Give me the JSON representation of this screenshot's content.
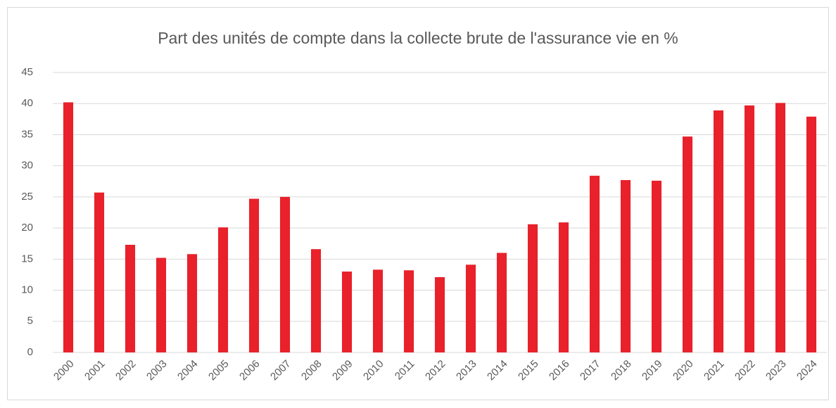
{
  "chart_data": {
    "type": "bar",
    "title": "Part des unités de compte dans la collecte brute de l'assurance vie en %",
    "categories": [
      "2000",
      "2001",
      "2002",
      "2003",
      "2004",
      "2005",
      "2006",
      "2007",
      "2008",
      "2009",
      "2010",
      "2011",
      "2012",
      "2013",
      "2014",
      "2015",
      "2016",
      "2017",
      "2018",
      "2019",
      "2020",
      "2021",
      "2022",
      "2023",
      "2024"
    ],
    "values": [
      40.2,
      25.7,
      17.3,
      15.2,
      15.8,
      20.1,
      24.7,
      25.0,
      16.6,
      13.0,
      13.3,
      13.2,
      12.1,
      14.1,
      16.0,
      20.6,
      20.9,
      28.4,
      27.7,
      27.6,
      34.7,
      38.9,
      39.7,
      40.1,
      37.9
    ],
    "color": "#e8212b",
    "ylim": [
      0,
      45
    ],
    "yticks": [
      0,
      5,
      10,
      15,
      20,
      25,
      30,
      35,
      40,
      45
    ],
    "grid": true
  }
}
